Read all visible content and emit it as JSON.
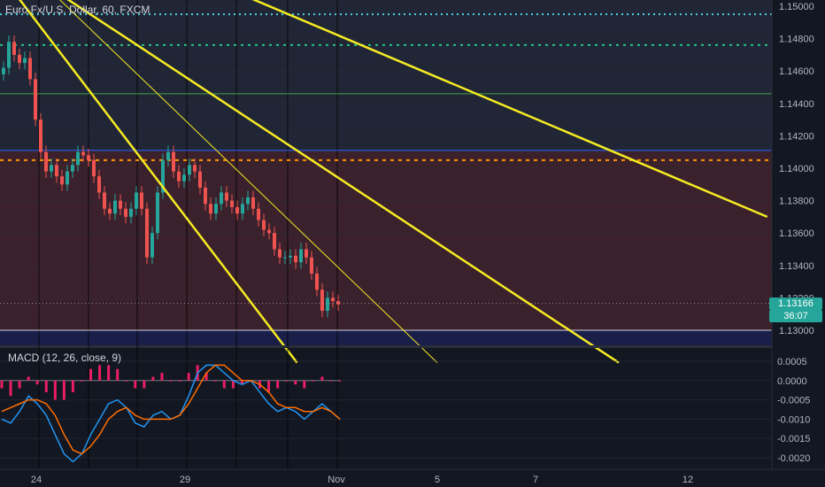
{
  "header": {
    "title": "Euro Fx/U.S. Dollar, 60, FXCM"
  },
  "macd_header": {
    "title": "MACD (12, 26, close, 9)"
  },
  "price_badge": {
    "value": "1.13166",
    "countdown": "36:07",
    "color": "#26a69a"
  },
  "colors": {
    "background": "#131722",
    "up_candle": "#26a69a",
    "down_candle": "#ef5350",
    "trendline": "#f5eb23",
    "macd_line": "#2196f3",
    "signal_line": "#ff6d00",
    "hist_pos": "#e91e63",
    "hist_neg": "#e91e63",
    "zone_red": "#4a2630",
    "zone_blue": "#1a1f4a",
    "cyan_dotted": "#4dd0e1",
    "green_dotted": "#26c281",
    "orange_dotted": "#ff9800",
    "green_solid": "#43a047",
    "blue_solid": "#2962ff"
  },
  "chart_data": [
    {
      "type": "candlestick",
      "symbol": "Euro Fx/U.S. Dollar",
      "interval": "60",
      "source": "FXCM",
      "yaxis_ticks": [
        1.15,
        1.148,
        1.146,
        1.144,
        1.142,
        1.14,
        1.138,
        1.136,
        1.134,
        1.132,
        1.13
      ],
      "ylim": [
        1.13,
        1.1502
      ],
      "xaxis_ticks": [
        "24",
        "29",
        "Nov",
        "5",
        "7",
        "12"
      ],
      "last_price": 1.13166,
      "approx_path": [
        1.1462,
        1.1478,
        1.147,
        1.1465,
        1.1468,
        1.1455,
        1.143,
        1.141,
        1.1398,
        1.1402,
        1.1395,
        1.139,
        1.1398,
        1.1402,
        1.141,
        1.1408,
        1.1405,
        1.1395,
        1.1385,
        1.1375,
        1.1372,
        1.138,
        1.1375,
        1.137,
        1.1375,
        1.1385,
        1.1375,
        1.1345,
        1.136,
        1.1385,
        1.1405,
        1.141,
        1.1398,
        1.1392,
        1.1396,
        1.1402,
        1.1398,
        1.1388,
        1.1378,
        1.1372,
        1.1378,
        1.1385,
        1.138,
        1.1376,
        1.1372,
        1.1378,
        1.1382,
        1.1375,
        1.1368,
        1.1362,
        1.136,
        1.135,
        1.1345,
        1.1345,
        1.1346,
        1.1342,
        1.135,
        1.1345,
        1.1335,
        1.1325,
        1.1312,
        1.132,
        1.1318,
        1.1316
      ],
      "horizontal_levels": [
        {
          "value": 1.1495,
          "style": "dotted",
          "color": "cyan"
        },
        {
          "value": 1.1476,
          "style": "dotted",
          "color": "green"
        },
        {
          "value": 1.1446,
          "style": "solid",
          "color": "green"
        },
        {
          "value": 1.1411,
          "style": "solid",
          "color": "blue"
        },
        {
          "value": 1.1405,
          "style": "dotted",
          "color": "orange"
        },
        {
          "value": 1.13,
          "style": "solid",
          "color": "white"
        }
      ],
      "zones": [
        {
          "from": 1.13,
          "to": 1.1411,
          "color": "red"
        },
        {
          "from": 1.128,
          "to": 1.13,
          "color": "navy"
        }
      ],
      "trendlines": [
        {
          "from": [
            1.152,
            0.0
          ],
          "to": [
            1.128,
            0.36
          ],
          "width": "thick"
        },
        {
          "from": [
            1.1515,
            0.05
          ],
          "to": [
            1.128,
            0.53
          ],
          "width": "thin"
        },
        {
          "from": [
            1.1515,
            0.05
          ],
          "to": [
            1.128,
            0.75
          ],
          "width": "thick"
        },
        {
          "from": [
            1.151,
            0.28
          ],
          "to": [
            1.137,
            0.93
          ],
          "width": "thick"
        }
      ]
    },
    {
      "type": "line",
      "title": "MACD (12, 26, close, 9)",
      "yaxis_ticks": [
        0.0005,
        0.0,
        -0.0005,
        -0.001,
        -0.0015,
        -0.002
      ],
      "ylim": [
        -0.0022,
        0.0007
      ],
      "series": [
        {
          "values": [
            -0.001,
            -0.0011,
            -0.0008,
            -0.0004,
            -0.0006,
            -0.0009,
            -0.0014,
            -0.0019,
            -0.0021,
            -0.0019,
            -0.0014,
            -0.001,
            -0.0006,
            -0.0005,
            -0.0007,
            -0.0011,
            -0.0012,
            -0.0009,
            -0.0008,
            -0.001,
            -0.0009,
            -0.0004,
            0.0002,
            0.0004,
            0.0004,
            0.0002,
            0.0,
            -0.0001,
            0.0,
            -0.0003,
            -0.0006,
            -0.0008,
            -0.0007,
            -0.0008,
            -0.001,
            -0.0008,
            -0.0006,
            -0.0008,
            -0.001
          ]
        },
        {
          "values": [
            -0.0008,
            -0.0007,
            -0.0006,
            -0.0005,
            -0.0005,
            -0.0006,
            -0.0009,
            -0.0014,
            -0.0018,
            -0.0019,
            -0.0017,
            -0.0014,
            -0.001,
            -0.0008,
            -0.0007,
            -0.0009,
            -0.001,
            -0.001,
            -0.001,
            -0.001,
            -0.0009,
            -0.0006,
            -0.0002,
            0.0002,
            0.0004,
            0.0004,
            0.0002,
            0.0,
            0.0,
            -0.0001,
            -0.0003,
            -0.0006,
            -0.0007,
            -0.0007,
            -0.0008,
            -0.0008,
            -0.0007,
            -0.0008,
            -0.001
          ]
        }
      ],
      "histogram": [
        -0.0002,
        -0.0004,
        -0.0002,
        0.0001,
        -0.0001,
        -0.0003,
        -0.0005,
        -0.0005,
        -0.0003,
        0.0,
        0.0003,
        0.0004,
        0.0004,
        0.0003,
        0.0,
        -0.0002,
        -0.0002,
        0.0001,
        0.0002,
        0.0,
        0.0,
        0.0002,
        0.0004,
        0.0002,
        0.0,
        -0.0002,
        -0.0002,
        -0.0001,
        0.0,
        -0.0002,
        -0.0003,
        -0.0002,
        0.0,
        -0.0001,
        -0.0002,
        0.0,
        0.0001,
        0.0,
        0.0
      ]
    }
  ]
}
